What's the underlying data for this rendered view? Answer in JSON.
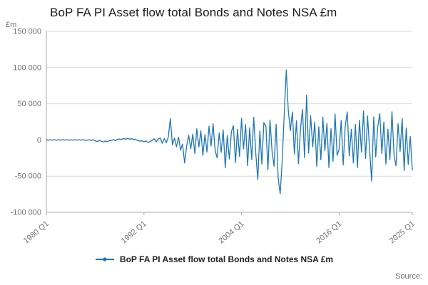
{
  "title": "BoP FA PI Asset flow total Bonds and Notes NSA £m",
  "y_unit": "£m",
  "legend": "BoP FA PI Asset flow total Bonds and Notes NSA £m",
  "source": "Source:",
  "colors": {
    "line": "#1f77b4",
    "grid": "#d9d9d9",
    "axis": "#a9a9a9",
    "text": "#707071"
  },
  "chart_data": {
    "type": "line",
    "title": "BoP FA PI Asset flow total Bonds and Notes NSA £m",
    "xlabel": "",
    "ylabel": "£m",
    "ylim": [
      -100000,
      150000
    ],
    "grid": "horizontal",
    "legend_position": "bottom",
    "x_start": "1980 Q1",
    "x_end": "2025 Q1",
    "x_frequency": "quarterly",
    "y_ticks": [
      {
        "v": 150000,
        "label": "150 000"
      },
      {
        "v": 100000,
        "label": "100 000"
      },
      {
        "v": 50000,
        "label": "50 000"
      },
      {
        "v": 0,
        "label": "0"
      },
      {
        "v": -50000,
        "label": "-50 000"
      },
      {
        "v": -100000,
        "label": "-100 000"
      }
    ],
    "x_ticks": [
      {
        "i": 0,
        "label": "1980 Q1"
      },
      {
        "i": 48,
        "label": "1992 Q1"
      },
      {
        "i": 96,
        "label": "2004 Q1"
      },
      {
        "i": 144,
        "label": "2016 Q1"
      },
      {
        "i": 180,
        "label": "2025 Q1"
      }
    ],
    "series_name": "BoP FA PI Asset flow total Bonds and Notes NSA £m",
    "values": [
      180,
      -250,
      320,
      -150,
      260,
      -340,
      190,
      -280,
      410,
      -220,
      150,
      -380,
      240,
      -160,
      330,
      -270,
      390,
      -310,
      220,
      -440,
      -520,
      310,
      -650,
      280,
      -1400,
      -2300,
      -900,
      -1800,
      -2900,
      -1600,
      -2400,
      -1100,
      -700,
      600,
      -1300,
      900,
      1400,
      700,
      1900,
      1100,
      2300,
      1200,
      1800,
      800,
      400,
      -900,
      -1700,
      -1200,
      -2800,
      -1500,
      -3600,
      -2100,
      -900,
      1800,
      -2700,
      1300,
      2800,
      -4600,
      1900,
      -3800,
      4200,
      29500,
      -6800,
      2600,
      -9500,
      3800,
      -14200,
      -5600,
      -31800,
      -8900,
      6500,
      -12400,
      8200,
      -18600,
      15400,
      -9800,
      12600,
      -21500,
      7400,
      -16800,
      18900,
      -8400,
      22300,
      -14600,
      -24800,
      9700,
      -17300,
      13800,
      -38500,
      6200,
      -26400,
      11500,
      19800,
      -31200,
      14700,
      -22900,
      29800,
      -12500,
      21400,
      -35600,
      16800,
      -27400,
      31200,
      -18900,
      -54800,
      12600,
      -33500,
      24100,
      18700,
      -41200,
      27600,
      -15800,
      -36500,
      21800,
      -52300,
      -74500,
      -28600,
      34500,
      96800,
      41200,
      12800,
      38600,
      -19400,
      26700,
      -32800,
      15900,
      42300,
      -24600,
      61800,
      -18200,
      33400,
      -9700,
      24600,
      -36800,
      18200,
      -27500,
      31500,
      -14800,
      22900,
      -38200,
      15600,
      -29400,
      35800,
      -21300,
      -12700,
      26900,
      -34600,
      18400,
      38700,
      -22100,
      14500,
      -31800,
      21600,
      -38400,
      27300,
      -16900,
      40200,
      -25600,
      33100,
      -12400,
      -56800,
      31700,
      -23500,
      17800,
      36400,
      -18900,
      24700,
      -33600,
      14800,
      -27300,
      38900,
      -21500,
      -35700,
      22400,
      -15800,
      29600,
      -42300,
      16500,
      -33800,
      4800,
      -41500
    ]
  }
}
